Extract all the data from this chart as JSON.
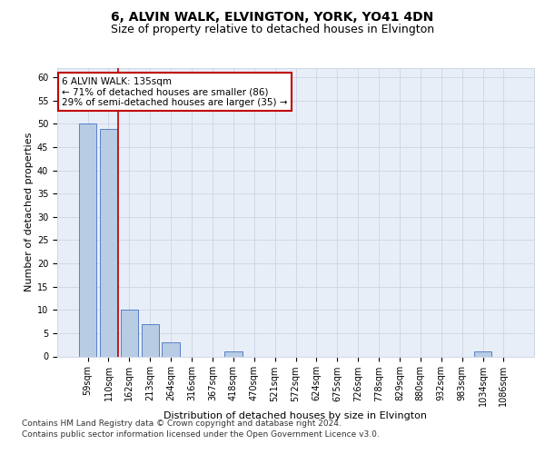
{
  "title1": "6, ALVIN WALK, ELVINGTON, YORK, YO41 4DN",
  "title2": "Size of property relative to detached houses in Elvington",
  "xlabel": "Distribution of detached houses by size in Elvington",
  "ylabel": "Number of detached properties",
  "categories": [
    "59sqm",
    "110sqm",
    "162sqm",
    "213sqm",
    "264sqm",
    "316sqm",
    "367sqm",
    "418sqm",
    "470sqm",
    "521sqm",
    "572sqm",
    "624sqm",
    "675sqm",
    "726sqm",
    "778sqm",
    "829sqm",
    "880sqm",
    "932sqm",
    "983sqm",
    "1034sqm",
    "1086sqm"
  ],
  "values": [
    50,
    49,
    10,
    7,
    3,
    0,
    0,
    1,
    0,
    0,
    0,
    0,
    0,
    0,
    0,
    0,
    0,
    0,
    0,
    1,
    0
  ],
  "bar_color": "#b8cce4",
  "bar_edge_color": "#4472c4",
  "vline_color": "#c00000",
  "annotation_text": "6 ALVIN WALK: 135sqm\n← 71% of detached houses are smaller (86)\n29% of semi-detached houses are larger (35) →",
  "annotation_box_color": "#c00000",
  "ylim": [
    0,
    62
  ],
  "yticks": [
    0,
    5,
    10,
    15,
    20,
    25,
    30,
    35,
    40,
    45,
    50,
    55,
    60
  ],
  "grid_color": "#d0d8e8",
  "background_color": "#e8eef7",
  "footer": "Contains HM Land Registry data © Crown copyright and database right 2024.\nContains public sector information licensed under the Open Government Licence v3.0.",
  "title_fontsize": 10,
  "subtitle_fontsize": 9,
  "axis_label_fontsize": 8,
  "tick_fontsize": 7,
  "footer_fontsize": 6.5
}
